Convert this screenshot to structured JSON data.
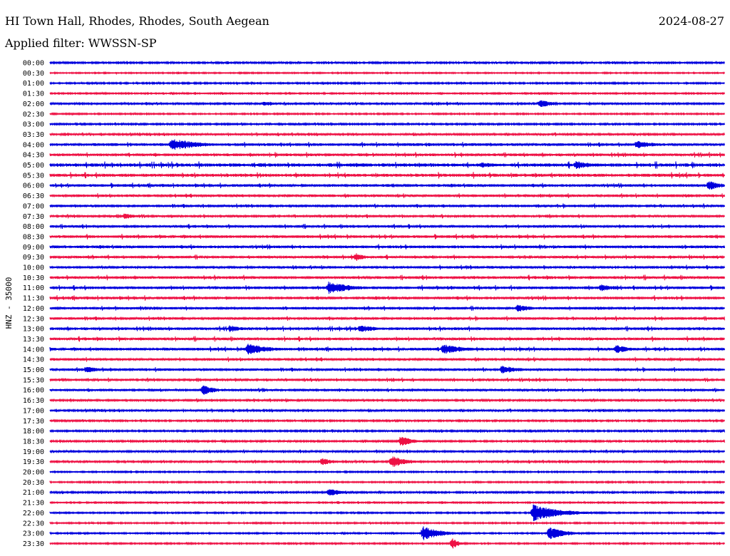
{
  "header": {
    "station": "HI Town Hall, Rhodes, Rhodes, South Aegean",
    "date": "2024-08-27",
    "filter_line": "Applied filter: WWSSN-SP"
  },
  "chart_data": {
    "type": "line",
    "kind": "helicorder",
    "channel_label": "HNZ - 35000",
    "row_labels": [
      "00:00",
      "00:30",
      "01:00",
      "01:30",
      "02:00",
      "02:30",
      "03:00",
      "03:30",
      "04:00",
      "04:30",
      "05:00",
      "05:30",
      "06:00",
      "06:30",
      "07:00",
      "07:30",
      "08:00",
      "08:30",
      "09:00",
      "09:30",
      "10:00",
      "10:30",
      "11:00",
      "11:30",
      "12:00",
      "12:30",
      "13:00",
      "13:30",
      "14:00",
      "14:30",
      "15:00",
      "15:30",
      "16:00",
      "16:30",
      "17:00",
      "17:30",
      "18:00",
      "18:30",
      "19:00",
      "19:30",
      "20:00",
      "20:30",
      "21:00",
      "21:30",
      "22:00",
      "22:30",
      "23:00",
      "23:30"
    ],
    "row_duration_minutes": 30,
    "grid": false,
    "colors": {
      "even_rows": "#0000dd",
      "odd_rows": "#ee1144"
    },
    "noise_level": [
      0.6,
      0.45,
      0.55,
      0.5,
      0.7,
      0.5,
      0.6,
      0.7,
      1.0,
      1.0,
      1.3,
      1.2,
      1.0,
      0.9,
      0.9,
      0.8,
      0.9,
      1.0,
      1.0,
      0.9,
      0.9,
      1.0,
      1.0,
      1.0,
      0.9,
      0.9,
      1.0,
      1.0,
      1.0,
      0.9,
      0.9,
      0.8,
      0.8,
      0.7,
      0.7,
      0.6,
      0.6,
      0.6,
      0.7,
      0.7,
      0.5,
      0.5,
      0.6,
      0.5,
      0.5,
      0.5,
      0.5,
      0.5
    ],
    "events": [
      {
        "row": 4,
        "minute": 21.8,
        "amplitude": 6,
        "duration_minutes": 0.6
      },
      {
        "row": 4,
        "minute": 9.5,
        "amplitude": 3,
        "duration_minutes": 0.8
      },
      {
        "row": 8,
        "minute": 5.4,
        "amplitude": 9,
        "duration_minutes": 1.2
      },
      {
        "row": 8,
        "minute": 26.1,
        "amplitude": 6,
        "duration_minutes": 0.8
      },
      {
        "row": 10,
        "minute": 23.4,
        "amplitude": 6,
        "duration_minutes": 0.8
      },
      {
        "row": 10,
        "minute": 19.2,
        "amplitude": 4,
        "duration_minutes": 0.8
      },
      {
        "row": 12,
        "minute": 29.3,
        "amplitude": 7,
        "duration_minutes": 0.6
      },
      {
        "row": 15,
        "minute": 3.3,
        "amplitude": 4,
        "duration_minutes": 0.6
      },
      {
        "row": 19,
        "minute": 13.6,
        "amplitude": 6,
        "duration_minutes": 0.4
      },
      {
        "row": 22,
        "minute": 12.4,
        "amplitude": 9,
        "duration_minutes": 1.0
      },
      {
        "row": 22,
        "minute": 24.5,
        "amplitude": 5,
        "duration_minutes": 0.8
      },
      {
        "row": 24,
        "minute": 20.8,
        "amplitude": 6,
        "duration_minutes": 0.6
      },
      {
        "row": 26,
        "minute": 13.8,
        "amplitude": 6,
        "duration_minutes": 0.6
      },
      {
        "row": 26,
        "minute": 8.0,
        "amplitude": 5,
        "duration_minutes": 0.6
      },
      {
        "row": 28,
        "minute": 8.8,
        "amplitude": 8,
        "duration_minutes": 1.0
      },
      {
        "row": 28,
        "minute": 17.5,
        "amplitude": 7,
        "duration_minutes": 1.0
      },
      {
        "row": 28,
        "minute": 25.2,
        "amplitude": 6,
        "duration_minutes": 0.6
      },
      {
        "row": 30,
        "minute": 1.6,
        "amplitude": 5,
        "duration_minutes": 0.6
      },
      {
        "row": 30,
        "minute": 20.1,
        "amplitude": 6,
        "duration_minutes": 0.8
      },
      {
        "row": 32,
        "minute": 6.8,
        "amplitude": 7,
        "duration_minutes": 0.6
      },
      {
        "row": 37,
        "minute": 15.6,
        "amplitude": 8,
        "duration_minutes": 0.5
      },
      {
        "row": 39,
        "minute": 15.2,
        "amplitude": 9,
        "duration_minutes": 0.6
      },
      {
        "row": 39,
        "minute": 12.1,
        "amplitude": 6,
        "duration_minutes": 0.5
      },
      {
        "row": 42,
        "minute": 12.4,
        "amplitude": 6,
        "duration_minutes": 0.6
      },
      {
        "row": 44,
        "minute": 21.5,
        "amplitude": 12,
        "duration_minutes": 1.2
      },
      {
        "row": 46,
        "minute": 16.6,
        "amplitude": 10,
        "duration_minutes": 0.8
      },
      {
        "row": 46,
        "minute": 22.2,
        "amplitude": 9,
        "duration_minutes": 0.8
      },
      {
        "row": 47,
        "minute": 17.9,
        "amplitude": 8,
        "duration_minutes": 0.3
      }
    ]
  }
}
